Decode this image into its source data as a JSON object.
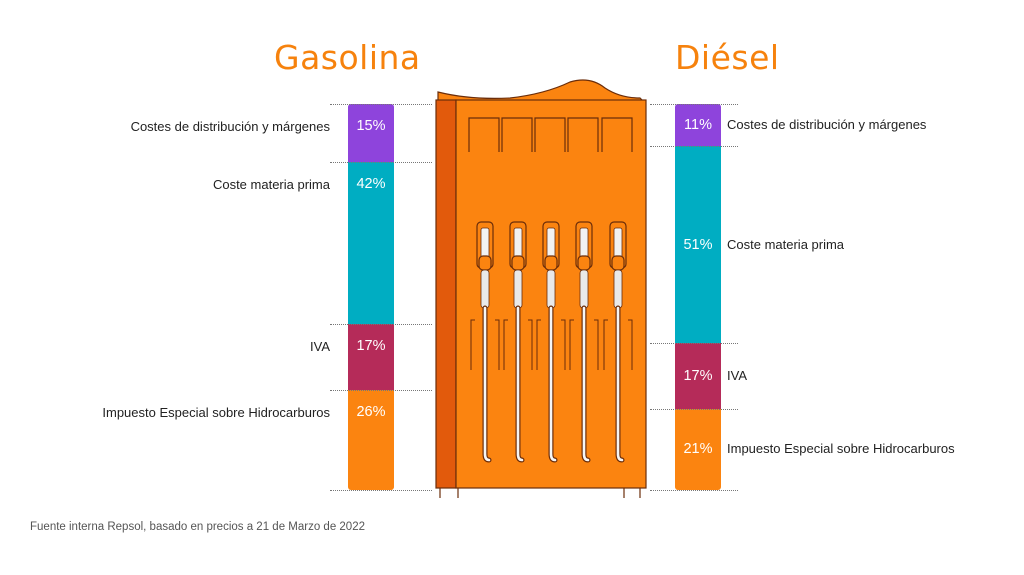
{
  "chart_data": {
    "type": "bar",
    "stacked": true,
    "series": [
      {
        "name": "Gasolina",
        "segments": [
          {
            "label": "Costes  de distribución y márgenes",
            "value": 15,
            "display": "15%",
            "color": "#8e44dc"
          },
          {
            "label": "Coste materia prima",
            "value": 42,
            "display": "42%",
            "color": "#00adc2"
          },
          {
            "label": "IVA",
            "value": 17,
            "display": "17%",
            "color": "#b52b59"
          },
          {
            "label": "Impuesto Especial sobre Hidrocarburos",
            "value": 26,
            "display": "26%",
            "color": "#fb8410"
          }
        ]
      },
      {
        "name": "Diésel",
        "segments": [
          {
            "label": "Costes  de distribución y márgenes",
            "value": 11,
            "display": "11%",
            "color": "#8e44dc"
          },
          {
            "label": "Coste materia prima",
            "value": 51,
            "display": "51%",
            "color": "#00adc2"
          },
          {
            "label": "IVA",
            "value": 17,
            "display": "17%",
            "color": "#b52b59"
          },
          {
            "label": "Impuesto Especial sobre Hidrocarburos",
            "value": 21,
            "display": "21%",
            "color": "#fb8410"
          }
        ]
      }
    ]
  },
  "source_note": "Fuente interna Repsol, basado en precios a 21 de Marzo de 2022",
  "illustration": "fuel-pump-icon",
  "colors": {
    "accent": "#f6820d",
    "pump_body": "#fb8410",
    "pump_side": "#e25a0c",
    "outline": "#6b2d0a"
  }
}
